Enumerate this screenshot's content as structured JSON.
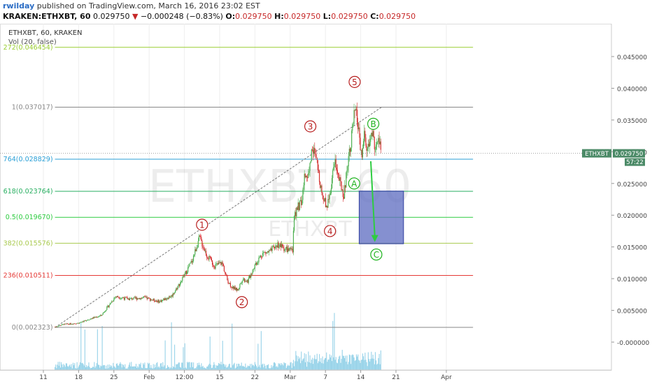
{
  "header": {
    "author": "rwilday",
    "published_text": "published on TradingView.com, March 16, 2016 23:02 EST",
    "symbol_line": "KRAKEN:ETHXBT, 60",
    "last": "0.029750",
    "change_arrow": "▼",
    "change": "−0.000248 (−0.83%)",
    "o_label": "O:",
    "o_value": "0.029750",
    "h_label": "H:",
    "h_value": "0.029750",
    "l_label": "L:",
    "l_value": "0.029750",
    "c_label": "C:",
    "c_value": "0.029750"
  },
  "legend": {
    "title": "ETHXBT, 60, KRAKEN",
    "volume": "Vol (20, false)"
  },
  "watermark": {
    "big": "ETHXBT, 60",
    "small": "ETHXBT"
  },
  "price_badge": {
    "symbol": "ETHXBT",
    "price": "0.029750",
    "countdown": "57:22"
  },
  "colors": {
    "up": "#4caf50",
    "down": "#d32f2f",
    "wave_label": "#b71c1c",
    "corrective_label": "#1db31d",
    "projection_box": "#5c6bc0",
    "arrow": "#2ecc40",
    "volume": "#7ec8e3",
    "badge": "#4b8a67"
  },
  "chart_data": {
    "type": "candlestick",
    "title": "ETHXBT, 60, KRAKEN",
    "ylim": [
      -0.005,
      0.049
    ],
    "y_ticks": [
      "0.045000",
      "0.040000",
      "0.035000",
      "0.030000",
      "0.025000",
      "0.020000",
      "0.015000",
      "0.010000",
      "0.005000",
      "-0.000000"
    ],
    "x_ticks": [
      {
        "label": "11",
        "t": 0
      },
      {
        "label": "18",
        "t": 7
      },
      {
        "label": "25",
        "t": 14
      },
      {
        "label": "Feb",
        "t": 21
      },
      {
        "label": "12:00",
        "t": 28
      },
      {
        "label": "15",
        "t": 35
      },
      {
        "label": "22",
        "t": 42
      },
      {
        "label": "Mar",
        "t": 49
      },
      {
        "label": "7",
        "t": 56
      },
      {
        "label": "14",
        "t": 63
      },
      {
        "label": "21",
        "t": 70
      },
      {
        "label": "Apr",
        "t": 80
      }
    ],
    "price_path": [
      {
        "t": 2.3,
        "p": 0.0024
      },
      {
        "t": 4,
        "p": 0.0028
      },
      {
        "t": 7,
        "p": 0.003
      },
      {
        "t": 9,
        "p": 0.0036
      },
      {
        "t": 11.5,
        "p": 0.0042
      },
      {
        "t": 13,
        "p": 0.0058
      },
      {
        "t": 14.3,
        "p": 0.0072
      },
      {
        "t": 17,
        "p": 0.0068
      },
      {
        "t": 20,
        "p": 0.007
      },
      {
        "t": 23,
        "p": 0.0064
      },
      {
        "t": 25.5,
        "p": 0.0073
      },
      {
        "t": 27.5,
        "p": 0.0098
      },
      {
        "t": 29.5,
        "p": 0.0128
      },
      {
        "t": 31,
        "p": 0.0165
      },
      {
        "t": 32.5,
        "p": 0.0136
      },
      {
        "t": 34,
        "p": 0.012
      },
      {
        "t": 35.5,
        "p": 0.0125
      },
      {
        "t": 36.5,
        "p": 0.0098
      },
      {
        "t": 37.5,
        "p": 0.0086
      },
      {
        "t": 38.6,
        "p": 0.0082
      },
      {
        "t": 39.5,
        "p": 0.01
      },
      {
        "t": 40.6,
        "p": 0.0096
      },
      {
        "t": 42,
        "p": 0.0122
      },
      {
        "t": 43.5,
        "p": 0.014
      },
      {
        "t": 45,
        "p": 0.0142
      },
      {
        "t": 46.5,
        "p": 0.0154
      },
      {
        "t": 48,
        "p": 0.0147
      },
      {
        "t": 49.5,
        "p": 0.0143
      },
      {
        "t": 49.8,
        "p": 0.02
      },
      {
        "t": 50.5,
        "p": 0.0212
      },
      {
        "t": 51.3,
        "p": 0.022
      },
      {
        "t": 51.8,
        "p": 0.0258
      },
      {
        "t": 52.8,
        "p": 0.027
      },
      {
        "t": 53.4,
        "p": 0.031
      },
      {
        "t": 54.3,
        "p": 0.028
      },
      {
        "t": 55,
        "p": 0.025
      },
      {
        "t": 55.5,
        "p": 0.0228
      },
      {
        "t": 56.3,
        "p": 0.0215
      },
      {
        "t": 57,
        "p": 0.024
      },
      {
        "t": 57.8,
        "p": 0.029
      },
      {
        "t": 58.3,
        "p": 0.0272
      },
      {
        "t": 58.9,
        "p": 0.025
      },
      {
        "t": 59.7,
        "p": 0.0232
      },
      {
        "t": 60.5,
        "p": 0.029
      },
      {
        "t": 61.3,
        "p": 0.033
      },
      {
        "t": 61.8,
        "p": 0.0362
      },
      {
        "t": 62.4,
        "p": 0.0348
      },
      {
        "t": 62.8,
        "p": 0.031
      },
      {
        "t": 63.2,
        "p": 0.029
      },
      {
        "t": 63.7,
        "p": 0.0325
      },
      {
        "t": 64.4,
        "p": 0.03
      },
      {
        "t": 65.2,
        "p": 0.033
      },
      {
        "t": 66,
        "p": 0.0305
      },
      {
        "t": 66.6,
        "p": 0.032
      },
      {
        "t": 67.1,
        "p": 0.0298
      }
    ],
    "fib_levels": [
      {
        "label": "272(0.046454)",
        "value": 0.046454,
        "color": "#9acd32"
      },
      {
        "label": "1(0.037017)",
        "value": 0.037017,
        "color": "#888888"
      },
      {
        "label": "764(0.028829)",
        "value": 0.028829,
        "color": "#2a9fd6"
      },
      {
        "label": "618(0.023764)",
        "value": 0.023764,
        "color": "#27ae60"
      },
      {
        "label": "0.5(0.019670)",
        "value": 0.01967,
        "color": "#2ecc40"
      },
      {
        "label": "382(0.015576)",
        "value": 0.015576,
        "color": "#a8c94d"
      },
      {
        "label": "236(0.010511)",
        "value": 0.010511,
        "color": "#e53935"
      },
      {
        "label": "0(0.002323)",
        "value": 0.002323,
        "color": "#888888"
      }
    ],
    "trendline": {
      "from": {
        "t": 2.3,
        "p": 0.0023
      },
      "to": {
        "t": 67.1,
        "p": 0.037
      }
    },
    "wave_labels": [
      {
        "label": "1",
        "t": 31.5,
        "p": 0.0185
      },
      {
        "label": "2",
        "t": 39.4,
        "p": 0.0063
      },
      {
        "label": "3",
        "t": 53.0,
        "p": 0.034
      },
      {
        "label": "4",
        "t": 56.9,
        "p": 0.0175
      },
      {
        "label": "5",
        "t": 61.8,
        "p": 0.041
      }
    ],
    "corrective_labels": [
      {
        "label": "A",
        "t": 61.7,
        "p": 0.025
      },
      {
        "label": "B",
        "t": 65.5,
        "p": 0.0344
      },
      {
        "label": "C",
        "t": 66.1,
        "p": 0.0138
      }
    ],
    "projection_box": {
      "t0": 62.7,
      "t1": 71.5,
      "p0": 0.0155,
      "p1": 0.0238
    },
    "projection_arrow": {
      "from": {
        "t": 65.0,
        "p": 0.0285
      },
      "to": {
        "t": 65.8,
        "p": 0.016
      }
    },
    "current_price": 0.02975
  }
}
